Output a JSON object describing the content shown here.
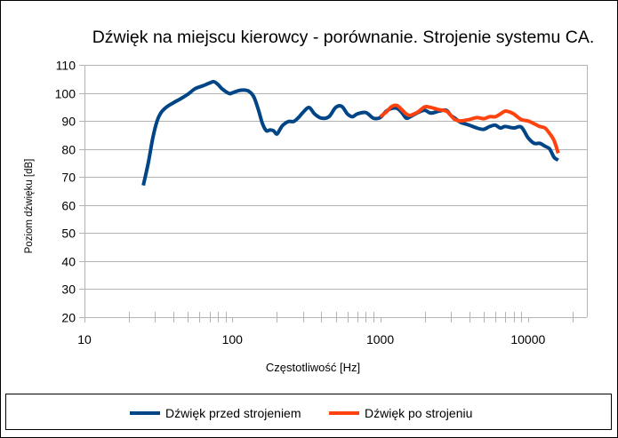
{
  "chart_data": {
    "type": "line",
    "title": "Dźwięk na miejscu kierowcy - porównanie. Strojenie systemu CA.",
    "xlabel": "Częstotliwość [Hz]",
    "ylabel": "Poziom dźwięku [dB]",
    "xscale": "log",
    "xlim": [
      10,
      25000
    ],
    "ylim": [
      20,
      110
    ],
    "xticks": [
      10,
      100,
      1000,
      10000
    ],
    "xtick_labels": [
      "10",
      "100",
      "1000",
      "10000"
    ],
    "yticks": [
      20,
      30,
      40,
      50,
      60,
      70,
      80,
      90,
      100,
      110
    ],
    "ytick_labels": [
      "20",
      "30",
      "40",
      "50",
      "60",
      "70",
      "80",
      "90",
      "100",
      "110"
    ],
    "grid": "horizontal",
    "legend_position": "bottom",
    "series": [
      {
        "name": "Dźwięk przed strojeniem",
        "color": "#004586",
        "x": [
          25,
          27,
          29,
          31,
          33,
          36,
          40,
          45,
          50,
          56,
          63,
          70,
          75,
          80,
          85,
          95,
          100,
          110,
          120,
          130,
          140,
          150,
          160,
          170,
          180,
          190,
          200,
          210,
          220,
          240,
          260,
          280,
          300,
          330,
          360,
          400,
          450,
          500,
          550,
          600,
          650,
          700,
          800,
          900,
          1000,
          1100,
          1200,
          1300,
          1400,
          1500,
          1600,
          1800,
          2000,
          2200,
          2500,
          2800,
          3000,
          3200,
          3500,
          4000,
          4500,
          5000,
          5500,
          6000,
          6500,
          7000,
          8000,
          9000,
          10000,
          11000,
          12000,
          13000,
          14000,
          15000,
          16000
        ],
        "y": [
          67,
          75,
          84,
          90,
          93,
          95,
          96.5,
          98,
          99.5,
          101.5,
          102.5,
          103.5,
          104,
          103,
          101.5,
          99.8,
          100,
          100.8,
          101,
          100.5,
          98.5,
          94,
          89,
          86.5,
          86.8,
          86.5,
          85.3,
          87,
          88.5,
          89.8,
          89.8,
          91.2,
          93,
          94.8,
          92.5,
          91,
          91.5,
          94.8,
          95.2,
          92.5,
          91.5,
          92.5,
          93,
          91,
          91.2,
          93.5,
          94.5,
          94.5,
          93,
          91,
          91.5,
          93,
          93.8,
          92.8,
          93.5,
          93.8,
          92,
          91,
          89.5,
          88.5,
          87.5,
          87,
          88,
          88.5,
          87.5,
          88,
          87.5,
          87.8,
          84,
          82,
          82,
          81,
          80,
          77,
          76
        ]
      },
      {
        "name": "Dźwięk po strojeniu",
        "color": "#ff420e",
        "x": [
          1000,
          1100,
          1200,
          1300,
          1400,
          1500,
          1600,
          1800,
          2000,
          2200,
          2500,
          2800,
          3000,
          3200,
          3500,
          4000,
          4500,
          5000,
          5500,
          6000,
          6500,
          7000,
          7500,
          8000,
          9000,
          10000,
          11000,
          12000,
          13000,
          14000,
          15000,
          16000
        ],
        "y": [
          91.5,
          93.2,
          95.2,
          95.5,
          94,
          92.5,
          92,
          93.2,
          95,
          94.8,
          94,
          93.5,
          92,
          90.5,
          90,
          90.5,
          91.2,
          90.8,
          91.5,
          91.5,
          92.5,
          93.5,
          93.2,
          92.5,
          90.5,
          90,
          89,
          88,
          87.5,
          85.5,
          83,
          78.5
        ]
      }
    ]
  }
}
